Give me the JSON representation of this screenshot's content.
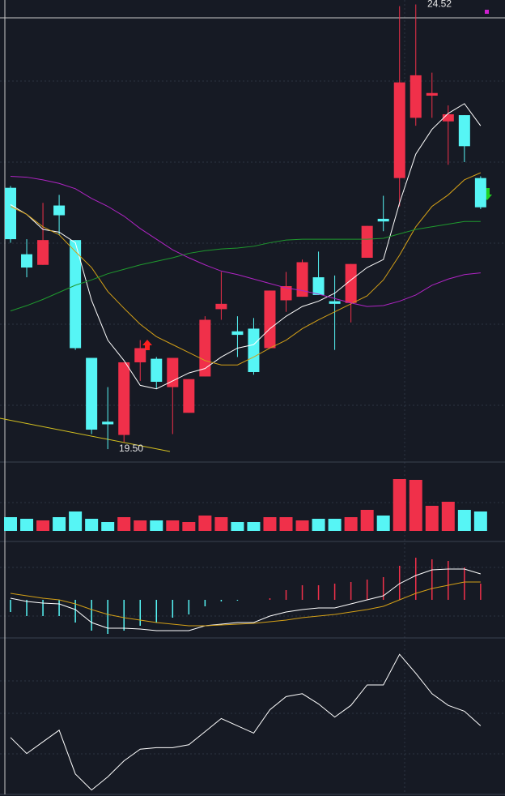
{
  "chart_data": [
    {
      "type": "candlestick",
      "ylim": [
        19.4,
        24.57
      ],
      "up_color": "#f0304a",
      "down_color": "#56f5f5",
      "open": [
        22.45,
        21.7,
        21.58,
        22.25,
        21.86,
        20.53,
        19.81,
        19.66,
        20.48,
        20.52,
        20.2,
        19.91,
        20.32,
        21.08,
        20.83,
        20.86,
        20.64,
        21.18,
        21.22,
        21.44,
        21.17,
        21.15,
        21.66,
        22.1,
        22.56,
        23.24,
        23.49,
        23.2,
        23.27,
        22.56
      ],
      "high": [
        22.47,
        21.87,
        22.28,
        22.37,
        21.86,
        20.53,
        20.2,
        20.48,
        20.73,
        20.54,
        20.53,
        20.29,
        21.0,
        21.5,
        21.0,
        20.98,
        21.29,
        21.5,
        21.64,
        21.73,
        21.46,
        21.59,
        22.02,
        22.36,
        24.5,
        24.52,
        23.75,
        23.38,
        23.27,
        22.58
      ],
      "low": [
        21.83,
        21.44,
        21.58,
        21.92,
        20.62,
        19.67,
        19.5,
        19.58,
        20.27,
        20.18,
        19.67,
        19.91,
        20.32,
        20.96,
        20.54,
        20.34,
        20.64,
        21.05,
        21.22,
        21.24,
        20.62,
        20.93,
        21.66,
        21.96,
        22.24,
        23.15,
        23.24,
        22.71,
        22.74,
        22.21
      ],
      "close": [
        21.87,
        21.55,
        21.86,
        22.14,
        20.64,
        19.72,
        19.78,
        20.48,
        20.64,
        20.26,
        20.53,
        20.29,
        20.96,
        21.14,
        20.79,
        20.37,
        21.29,
        21.34,
        21.61,
        21.24,
        21.14,
        21.59,
        22.02,
        22.07,
        23.64,
        23.72,
        23.52,
        23.28,
        22.92,
        22.23
      ],
      "series": [
        {
          "color": "#ffffff",
          "values": [
            22.26,
            22.15,
            21.98,
            21.95,
            21.83,
            21.18,
            20.73,
            20.5,
            20.22,
            20.18,
            20.27,
            20.36,
            20.41,
            20.54,
            20.64,
            20.68,
            20.86,
            21.0,
            21.11,
            21.17,
            21.26,
            21.41,
            21.55,
            21.64,
            22.28,
            22.83,
            23.11,
            23.29,
            23.4,
            23.15
          ]
        },
        {
          "color": "#d4a017",
          "values": [
            22.24,
            22.15,
            22.01,
            21.92,
            21.73,
            21.55,
            21.28,
            21.09,
            20.91,
            20.77,
            20.68,
            20.59,
            20.5,
            20.45,
            20.45,
            20.54,
            20.64,
            20.73,
            20.86,
            20.96,
            21.05,
            21.14,
            21.23,
            21.41,
            21.69,
            22.01,
            22.24,
            22.37,
            22.54,
            22.62
          ]
        },
        {
          "color": "#1f9a2e",
          "values": [
            21.06,
            21.12,
            21.19,
            21.27,
            21.35,
            21.41,
            21.48,
            21.53,
            21.58,
            21.62,
            21.66,
            21.71,
            21.74,
            21.76,
            21.77,
            21.79,
            21.83,
            21.86,
            21.87,
            21.87,
            21.87,
            21.87,
            21.87,
            21.88,
            21.93,
            21.98,
            22.01,
            22.04,
            22.07,
            22.07
          ]
        },
        {
          "color": "#b024c4",
          "values": [
            22.58,
            22.57,
            22.54,
            22.5,
            22.44,
            22.33,
            22.24,
            22.13,
            21.99,
            21.87,
            21.75,
            21.66,
            21.58,
            21.51,
            21.47,
            21.42,
            21.37,
            21.32,
            21.29,
            21.25,
            21.2,
            21.15,
            21.11,
            21.12,
            21.17,
            21.24,
            21.35,
            21.42,
            21.47,
            21.49
          ]
        }
      ],
      "annotations": [
        {
          "value": 24.52,
          "label": "24.52"
        },
        {
          "value": 19.5,
          "label": "19.50"
        }
      ]
    },
    {
      "type": "bar",
      "ylim": [
        0,
        67
      ],
      "values": [
        17,
        15,
        13,
        17,
        24,
        15,
        11,
        17,
        13,
        13,
        13,
        11,
        19,
        17,
        11,
        11,
        17,
        17,
        13,
        15,
        15,
        17,
        26,
        19,
        64,
        63,
        31,
        36,
        26,
        24
      ],
      "colors": [
        "#56f5f5",
        "#56f5f5",
        "#f0304a",
        "#56f5f5",
        "#56f5f5",
        "#56f5f5",
        "#56f5f5",
        "#f0304a",
        "#f0304a",
        "#56f5f5",
        "#f0304a",
        "#f0304a",
        "#f0304a",
        "#f0304a",
        "#56f5f5",
        "#56f5f5",
        "#f0304a",
        "#f0304a",
        "#f0304a",
        "#56f5f5",
        "#56f5f5",
        "#f0304a",
        "#f0304a",
        "#56f5f5",
        "#f0304a",
        "#f0304a",
        "#f0304a",
        "#f0304a",
        "#56f5f5",
        "#56f5f5"
      ]
    },
    {
      "type": "bar",
      "ylim": [
        -0.46,
        0.68
      ],
      "up_color": "#f0304a",
      "down_color": "#56f5f5",
      "values": [
        -0.15,
        -0.2,
        -0.2,
        -0.2,
        -0.28,
        -0.38,
        -0.42,
        -0.38,
        -0.32,
        -0.28,
        -0.22,
        -0.18,
        -0.08,
        -0.02,
        -0.01,
        0,
        0.02,
        0.12,
        0.18,
        0.18,
        0.2,
        0.22,
        0.25,
        0.28,
        0.42,
        0.52,
        0.5,
        0.48,
        0.4,
        0.2
      ],
      "series": [
        {
          "color": "#ffffff",
          "values": [
            0.02,
            -0.02,
            -0.04,
            -0.05,
            -0.12,
            -0.28,
            -0.35,
            -0.35,
            -0.36,
            -0.38,
            -0.38,
            -0.38,
            -0.32,
            -0.3,
            -0.28,
            -0.28,
            -0.2,
            -0.15,
            -0.12,
            -0.1,
            -0.1,
            -0.05,
            0,
            0.05,
            0.2,
            0.3,
            0.37,
            0.38,
            0.38,
            0.32
          ]
        },
        {
          "color": "#d4a017",
          "values": [
            0.08,
            0.05,
            0.02,
            0,
            -0.05,
            -0.12,
            -0.18,
            -0.22,
            -0.25,
            -0.28,
            -0.3,
            -0.32,
            -0.32,
            -0.31,
            -0.3,
            -0.29,
            -0.27,
            -0.25,
            -0.22,
            -0.2,
            -0.18,
            -0.15,
            -0.12,
            -0.08,
            0,
            0.08,
            0.14,
            0.18,
            0.22,
            0.22
          ]
        }
      ]
    },
    {
      "type": "line",
      "ylim": [
        0,
        100
      ],
      "series": [
        {
          "color": "#ffffff",
          "values": [
            39,
            28,
            36,
            44,
            14,
            3,
            12,
            23,
            31,
            32,
            32,
            34,
            43,
            52,
            47,
            42,
            58,
            67,
            69,
            62,
            53,
            61,
            75,
            75,
            96,
            83,
            69,
            61,
            57,
            47
          ]
        }
      ]
    }
  ]
}
